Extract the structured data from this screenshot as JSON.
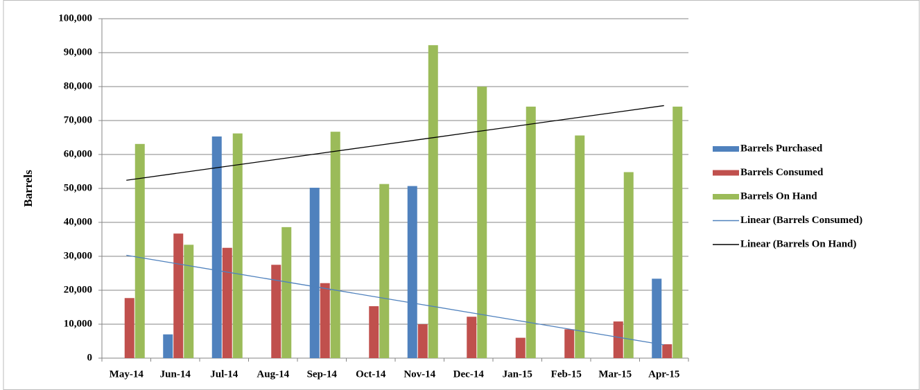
{
  "chart_data": {
    "type": "bar",
    "y_label": "Barrels",
    "categories": [
      "May-14",
      "Jun-14",
      "Jul-14",
      "Aug-14",
      "Sep-14",
      "Oct-14",
      "Nov-14",
      "Dec-14",
      "Jan-15",
      "Feb-15",
      "Mar-15",
      "Apr-15"
    ],
    "series": [
      {
        "name": "Barrels Purchased",
        "type": "bar",
        "color": "#4f81bd",
        "values": [
          0,
          7000,
          65300,
          0,
          50200,
          0,
          50700,
          0,
          0,
          0,
          0,
          23400
        ]
      },
      {
        "name": "Barrels Consumed",
        "type": "bar",
        "color": "#c0504d",
        "values": [
          17700,
          36700,
          32500,
          27500,
          22100,
          15300,
          10000,
          12200,
          6000,
          8500,
          10800,
          4100
        ]
      },
      {
        "name": "Barrels On Hand",
        "type": "bar",
        "color": "#9bbb59",
        "values": [
          63100,
          33400,
          66200,
          38600,
          66700,
          51300,
          92200,
          80000,
          74100,
          65600,
          54800,
          74100
        ]
      },
      {
        "name": "Linear (Barrels Consumed)",
        "type": "line",
        "color": "#4f81bd",
        "values": [
          30300,
          27900,
          25500,
          23100,
          20700,
          18300,
          15900,
          13500,
          11100,
          8700,
          6300,
          3900
        ]
      },
      {
        "name": "Linear (Barrels On Hand)",
        "type": "line",
        "color": "#000000",
        "values": [
          52400,
          54400,
          56400,
          58400,
          60400,
          62400,
          64400,
          66400,
          68400,
          70400,
          72400,
          74400
        ]
      }
    ],
    "ylim": [
      0,
      100000
    ],
    "yticks": [
      0,
      {
        "value": 10000,
        "label": "10,000"
      },
      {
        "value": 20000,
        "label": "20,000"
      },
      {
        "value": 30000,
        "label": "30,000"
      },
      {
        "value": 40000,
        "label": "40,000"
      },
      {
        "value": 50000,
        "label": "50,000"
      },
      {
        "value": 60000,
        "label": "60,000"
      },
      {
        "value": 70000,
        "label": "70,000"
      },
      {
        "value": 80000,
        "label": "80,000"
      },
      {
        "value": 90000,
        "label": "90,000"
      },
      {
        "value": 100000,
        "label": "100,000"
      }
    ],
    "grid": true,
    "legend": "right"
  }
}
